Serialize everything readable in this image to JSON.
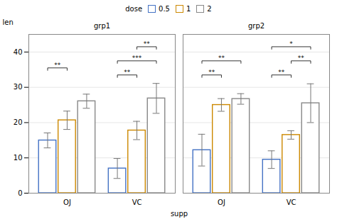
{
  "chart_data": {
    "type": "bar",
    "ylabel": "len",
    "xlabel": "supp",
    "legend_title": "dose",
    "legend": "top",
    "facets": [
      "grp1",
      "grp2"
    ],
    "categories": [
      "OJ",
      "VC"
    ],
    "series": [
      {
        "name": "0.5",
        "color": "#4472C4",
        "values": [
          [
            14.95,
            7.0
          ],
          [
            12.2,
            9.5
          ]
        ],
        "errors": [
          [
            2.12,
            2.83
          ],
          [
            4.5,
            2.5
          ]
        ]
      },
      {
        "name": "1",
        "color": "#CC8800",
        "values": [
          [
            20.66,
            17.77
          ],
          [
            25.0,
            16.5
          ]
        ],
        "errors": [
          [
            2.6,
            2.6
          ],
          [
            1.8,
            1.2
          ]
        ]
      },
      {
        "name": "2",
        "color": "#888888",
        "values": [
          [
            26.06,
            26.86
          ],
          [
            26.7,
            25.5
          ]
        ],
        "errors": [
          [
            2.0,
            4.24
          ],
          [
            1.5,
            5.5
          ]
        ]
      }
    ],
    "significance": [
      {
        "facet": "grp1",
        "category": "OJ",
        "from": "0.5",
        "to": "1",
        "y": 35.5,
        "label": "**"
      },
      {
        "facet": "grp1",
        "category": "VC",
        "from": "0.5",
        "to": "1",
        "y": 33.5,
        "label": "**"
      },
      {
        "facet": "grp1",
        "category": "VC",
        "from": "0.5",
        "to": "2",
        "y": 37.5,
        "label": "***"
      },
      {
        "facet": "grp1",
        "category": "VC",
        "from": "1",
        "to": "2",
        "y": 41.5,
        "label": "**"
      },
      {
        "facet": "grp2",
        "category": "OJ",
        "from": "0.5",
        "to": "1",
        "y": 33.5,
        "label": "**"
      },
      {
        "facet": "grp2",
        "category": "OJ",
        "from": "0.5",
        "to": "2",
        "y": 37.5,
        "label": "**"
      },
      {
        "facet": "grp2",
        "category": "VC",
        "from": "0.5",
        "to": "1",
        "y": 33.5,
        "label": "**"
      },
      {
        "facet": "grp2",
        "category": "VC",
        "from": "1",
        "to": "2",
        "y": 37.5,
        "label": "**"
      },
      {
        "facet": "grp2",
        "category": "VC",
        "from": "0.5",
        "to": "2",
        "y": 41.5,
        "label": "*"
      }
    ],
    "ylim": [
      0,
      45
    ],
    "yticks": [
      0,
      10,
      20,
      30,
      40
    ],
    "grid": true
  }
}
